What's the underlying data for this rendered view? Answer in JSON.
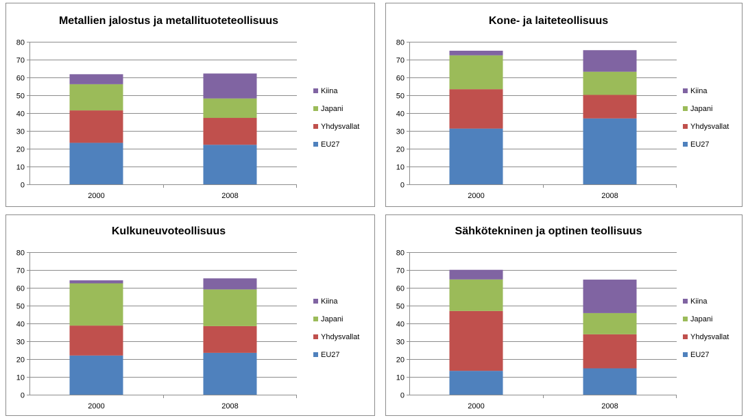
{
  "chart_data": [
    {
      "type": "bar",
      "stacked": true,
      "title": "Metallien jalostus ja metallituoteteollisuus",
      "categories": [
        "2000",
        "2008"
      ],
      "ylim": [
        0,
        80
      ],
      "yticks": [
        "0",
        "10",
        "20",
        "30",
        "40",
        "50",
        "60",
        "70",
        "80"
      ],
      "grid": true,
      "legend_position": "right",
      "series": [
        {
          "name": "EU27",
          "color": "#4f81bd",
          "values": [
            23.3,
            22.2
          ]
        },
        {
          "name": "Yhdysvallat",
          "color": "#c0504d",
          "values": [
            18.2,
            15.1
          ]
        },
        {
          "name": "Japani",
          "color": "#9bbb59",
          "values": [
            14.7,
            10.9
          ]
        },
        {
          "name": "Kiina",
          "color": "#8064a2",
          "values": [
            5.6,
            14.0
          ]
        }
      ]
    },
    {
      "type": "bar",
      "stacked": true,
      "title": "Kone- ja laiteteollisuus",
      "categories": [
        "2000",
        "2008"
      ],
      "ylim": [
        0,
        80
      ],
      "yticks": [
        "0",
        "10",
        "20",
        "30",
        "40",
        "50",
        "60",
        "70",
        "80"
      ],
      "grid": true,
      "legend_position": "right",
      "series": [
        {
          "name": "EU27",
          "color": "#4f81bd",
          "values": [
            31.3,
            37.0
          ]
        },
        {
          "name": "Yhdysvallat",
          "color": "#c0504d",
          "values": [
            22.1,
            13.2
          ]
        },
        {
          "name": "Japani",
          "color": "#9bbb59",
          "values": [
            19.0,
            13.0
          ]
        },
        {
          "name": "Kiina",
          "color": "#8064a2",
          "values": [
            2.6,
            12.1
          ]
        }
      ]
    },
    {
      "type": "bar",
      "stacked": true,
      "title": "Kulkuneuvoteollisuus",
      "categories": [
        "2000",
        "2008"
      ],
      "ylim": [
        0,
        80
      ],
      "yticks": [
        "0",
        "10",
        "20",
        "30",
        "40",
        "50",
        "60",
        "70",
        "80"
      ],
      "grid": true,
      "legend_position": "right",
      "series": [
        {
          "name": "EU27",
          "color": "#4f81bd",
          "values": [
            22.0,
            23.5
          ]
        },
        {
          "name": "Yhdysvallat",
          "color": "#c0504d",
          "values": [
            16.8,
            15.0
          ]
        },
        {
          "name": "Japani",
          "color": "#9bbb59",
          "values": [
            23.7,
            20.6
          ]
        },
        {
          "name": "Kiina",
          "color": "#8064a2",
          "values": [
            1.7,
            6.2
          ]
        }
      ]
    },
    {
      "type": "bar",
      "stacked": true,
      "title": "Sähkötekninen ja optinen teollisuus",
      "categories": [
        "2000",
        "2008"
      ],
      "ylim": [
        0,
        80
      ],
      "yticks": [
        "0",
        "10",
        "20",
        "30",
        "40",
        "50",
        "60",
        "70",
        "80"
      ],
      "grid": true,
      "legend_position": "right",
      "series": [
        {
          "name": "EU27",
          "color": "#4f81bd",
          "values": [
            13.4,
            14.8
          ]
        },
        {
          "name": "Yhdysvallat",
          "color": "#c0504d",
          "values": [
            33.6,
            19.1
          ]
        },
        {
          "name": "Japani",
          "color": "#9bbb59",
          "values": [
            17.7,
            11.9
          ]
        },
        {
          "name": "Kiina",
          "color": "#8064a2",
          "values": [
            5.4,
            18.8
          ]
        }
      ]
    }
  ]
}
